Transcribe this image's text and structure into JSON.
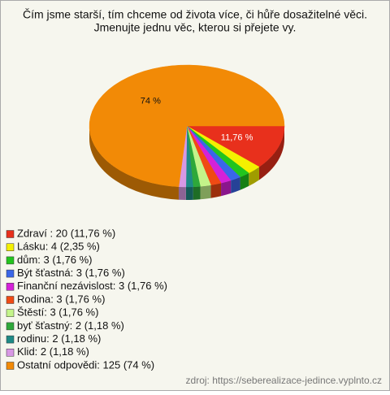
{
  "chart_data": {
    "type": "pie",
    "title": [
      "Čím jsme starší, tím chceme od života více, či hůře dosažitelné věci.",
      "Jmenujte jednu věc, kterou si přejete vy."
    ],
    "labels": [
      "Zdraví : 20 (11,76 %)",
      "Lásku: 4 (2,35 %)",
      "dům: 3 (1,76 %)",
      "Být šťastná: 3 (1,76 %)",
      "Finanční nezávislost: 3 (1,76 %)",
      "Rodina: 3 (1,76 %)",
      "Štěstí: 3 (1,76 %)",
      "byť šťastný: 2 (1,18 %)",
      "rodinu: 2 (1,18 %)",
      "Klid: 2 (1,18 %)",
      "Ostatní odpovědi: 125 (74 %)"
    ],
    "values": [
      11.76,
      2.35,
      1.76,
      1.76,
      1.76,
      1.76,
      1.76,
      1.18,
      1.18,
      1.18,
      74
    ],
    "value_labels": [
      "11,76 %",
      null,
      null,
      null,
      null,
      null,
      null,
      null,
      null,
      null,
      "74 %"
    ],
    "colors": [
      "#e8301c",
      "#f4f000",
      "#22c41e",
      "#3a66e8",
      "#d422d8",
      "#f04a14",
      "#c4f48a",
      "#2ea83a",
      "#1e8a86",
      "#d898e4",
      "#f28a06"
    ],
    "source": "zdroj: https://seberealizace-jedince.vyplnto.cz"
  }
}
